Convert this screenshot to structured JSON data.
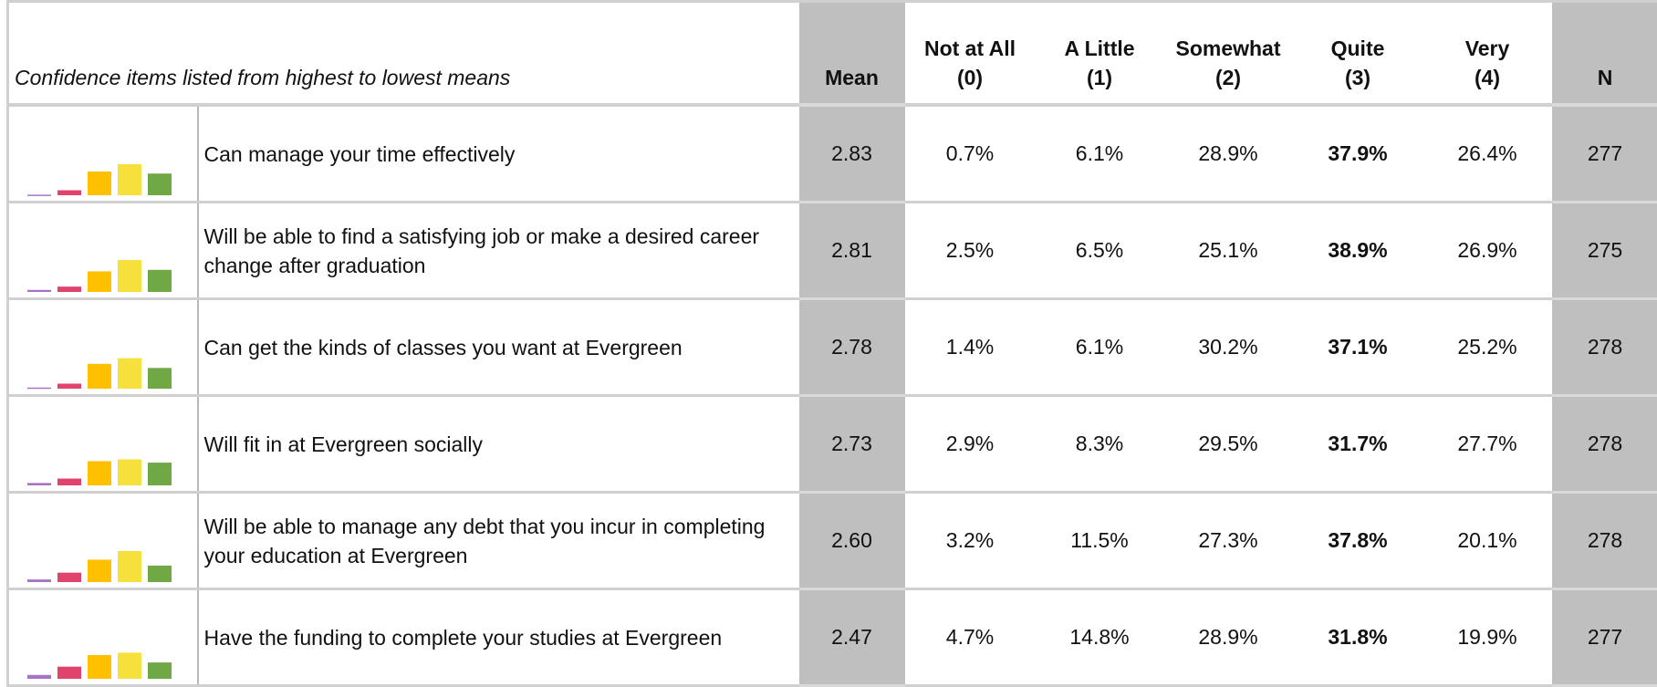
{
  "header": {
    "title": "Confidence items listed from highest to lowest means",
    "columns": [
      {
        "label": "Mean"
      },
      {
        "label": "Not at All",
        "code": "(0)"
      },
      {
        "label": "A Little",
        "code": "(1)"
      },
      {
        "label": "Somewhat",
        "code": "(2)"
      },
      {
        "label": "Quite",
        "code": "(3)"
      },
      {
        "label": "Very",
        "code": "(4)"
      },
      {
        "label": "N"
      }
    ]
  },
  "bar_colors": [
    "#a774c4",
    "#e0436c",
    "#ffc000",
    "#f6e03c",
    "#70a845"
  ],
  "rows": [
    {
      "item": "Can manage your time effectively",
      "mean": "2.83",
      "pct": [
        "0.7%",
        "6.1%",
        "28.9%",
        "37.9%",
        "26.4%"
      ],
      "n": "277"
    },
    {
      "item": "Will be able to find a satisfying job or make a desired career change after graduation",
      "mean": "2.81",
      "pct": [
        "2.5%",
        "6.5%",
        "25.1%",
        "38.9%",
        "26.9%"
      ],
      "n": "275"
    },
    {
      "item": "Can get the kinds of classes you want at Evergreen",
      "mean": "2.78",
      "pct": [
        "1.4%",
        "6.1%",
        "30.2%",
        "37.1%",
        "25.2%"
      ],
      "n": "278"
    },
    {
      "item": "Will fit in at Evergreen socially",
      "mean": "2.73",
      "pct": [
        "2.9%",
        "8.3%",
        "29.5%",
        "31.7%",
        "27.7%"
      ],
      "n": "278"
    },
    {
      "item": "Will be able to manage any debt that you incur in completing your education at Evergreen",
      "mean": "2.60",
      "pct": [
        "3.2%",
        "11.5%",
        "27.3%",
        "37.8%",
        "20.1%"
      ],
      "n": "278"
    },
    {
      "item": "Have the funding to complete your studies at Evergreen",
      "mean": "2.47",
      "pct": [
        "4.7%",
        "14.8%",
        "28.9%",
        "31.8%",
        "19.9%"
      ],
      "n": "277"
    }
  ]
}
